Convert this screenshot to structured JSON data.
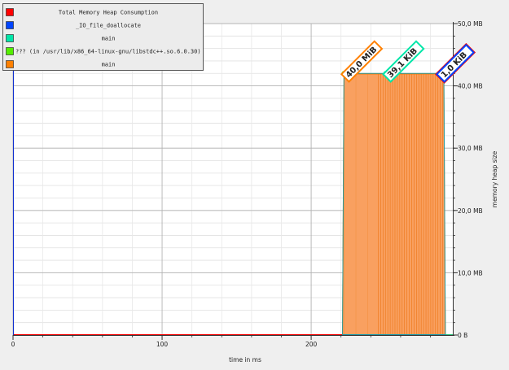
{
  "chart_data": {
    "type": "area",
    "xlabel": "time in ms",
    "ylabel": "memory heap size",
    "xlim": [
      0,
      295
    ],
    "ylim": [
      0,
      50
    ],
    "x_ticks": [
      0,
      100,
      200
    ],
    "y_ticks": [
      {
        "value": 0,
        "label": "0 B"
      },
      {
        "value": 10,
        "label": "10,0 MB"
      },
      {
        "value": 20,
        "label": "20,0 MB"
      },
      {
        "value": 30,
        "label": "30,0 MB"
      },
      {
        "value": 40,
        "label": "40,0 MB"
      },
      {
        "value": 50,
        "label": "50,0 MB"
      }
    ],
    "grid": true,
    "legend_position": "top-left",
    "series": [
      {
        "name": "Total Memory Heap Consumption",
        "color": "#ff0000",
        "x": [
          0,
          221,
          222,
          289,
          290,
          295
        ],
        "y": [
          0,
          0,
          42.0,
          42.0,
          0,
          0
        ]
      },
      {
        "name": "_IO_file_doallocate",
        "color": "#0044ff",
        "x": [
          0,
          289,
          295
        ],
        "y": [
          0,
          0.001,
          0.001
        ]
      },
      {
        "name": "main",
        "color": "#00e6a8",
        "x": [
          0,
          250,
          295
        ],
        "y": [
          0,
          0.04,
          0.04
        ]
      },
      {
        "name": "??? (in /usr/lib/x86_64-linux-gnu/libstdc++.so.6.0.30)",
        "color": "#55ee00",
        "x": [
          0,
          222,
          295
        ],
        "y": [
          0,
          0.07,
          0.07
        ]
      },
      {
        "name": "main",
        "color": "#ff8000",
        "x": [
          0,
          221,
          222,
          289,
          290,
          295
        ],
        "y": [
          0,
          0,
          41.9,
          41.9,
          0,
          0
        ]
      }
    ],
    "peak_labels": [
      {
        "text": "40,0 MiB",
        "x": 222,
        "y": 42.0,
        "color": "#ff8000",
        "marker_color": "#55ee00"
      },
      {
        "text": "39,1 KiB",
        "x": 250,
        "y": 42.0,
        "color": "#00e6a8",
        "marker_color": "#00e6a8"
      },
      {
        "text": "1,0 KiB",
        "x": 286,
        "y": 42.0,
        "color": "#0044ff",
        "marker_color": "#0044ff",
        "outline": "#ff0000"
      }
    ]
  }
}
